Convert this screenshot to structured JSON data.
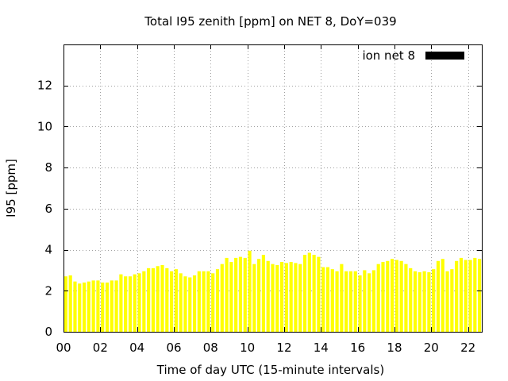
{
  "chart_data": {
    "type": "bar",
    "title": "Total I95 zenith [ppm] on NET 8, DoY=039",
    "xlabel": "Time of day UTC (15-minute intervals)",
    "ylabel": "I95 [ppm]",
    "xlim": [
      0,
      22.75
    ],
    "ylim": [
      0,
      14
    ],
    "x_ticks": [
      0,
      2,
      4,
      6,
      8,
      10,
      12,
      14,
      16,
      18,
      20,
      22
    ],
    "x_tick_labels": [
      "00",
      "02",
      "04",
      "06",
      "08",
      "10",
      "12",
      "14",
      "16",
      "18",
      "20",
      "22"
    ],
    "y_ticks": [
      0,
      2,
      4,
      6,
      8,
      10,
      12
    ],
    "y_tick_labels": [
      "0",
      "2",
      "4",
      "6",
      "8",
      "10",
      "12"
    ],
    "grid": true,
    "legend_position": "top-right",
    "bar_color": "#ffff00",
    "legend_swatch_color": "#000000",
    "series": [
      {
        "name": "ion net 8",
        "x": [
          0.0,
          0.25,
          0.5,
          0.75,
          1.0,
          1.25,
          1.5,
          1.75,
          2.0,
          2.25,
          2.5,
          2.75,
          3.0,
          3.25,
          3.5,
          3.75,
          4.0,
          4.25,
          4.5,
          4.75,
          5.0,
          5.25,
          5.5,
          5.75,
          6.0,
          6.25,
          6.5,
          6.75,
          7.0,
          7.25,
          7.5,
          7.75,
          8.0,
          8.25,
          8.5,
          8.75,
          9.0,
          9.25,
          9.5,
          9.75,
          10.0,
          10.25,
          10.5,
          10.75,
          11.0,
          11.25,
          11.5,
          11.75,
          12.0,
          12.25,
          12.5,
          12.75,
          13.0,
          13.25,
          13.5,
          13.75,
          14.0,
          14.25,
          14.5,
          14.75,
          15.0,
          15.25,
          15.5,
          15.75,
          16.0,
          16.25,
          16.5,
          16.75,
          17.0,
          17.25,
          17.5,
          17.75,
          18.0,
          18.25,
          18.5,
          18.75,
          19.0,
          19.25,
          19.5,
          19.75,
          20.0,
          20.25,
          20.5,
          20.75,
          21.0,
          21.25,
          21.5,
          21.75,
          22.0,
          22.25,
          22.5
        ],
        "values": [
          2.7,
          2.75,
          2.45,
          2.35,
          2.4,
          2.45,
          2.5,
          2.5,
          2.4,
          2.4,
          2.5,
          2.5,
          2.8,
          2.7,
          2.7,
          2.8,
          2.85,
          2.95,
          3.1,
          3.1,
          3.2,
          3.25,
          3.1,
          2.95,
          3.05,
          2.85,
          2.7,
          2.65,
          2.75,
          2.95,
          2.95,
          2.95,
          2.85,
          3.05,
          3.3,
          3.6,
          3.4,
          3.6,
          3.65,
          3.6,
          3.95,
          3.3,
          3.55,
          3.75,
          3.45,
          3.3,
          3.25,
          3.4,
          3.35,
          3.4,
          3.35,
          3.3,
          3.75,
          3.85,
          3.75,
          3.65,
          3.15,
          3.15,
          3.05,
          2.95,
          3.3,
          2.95,
          2.95,
          2.95,
          2.75,
          3.0,
          2.85,
          3.0,
          3.3,
          3.4,
          3.45,
          3.55,
          3.5,
          3.45,
          3.3,
          3.1,
          2.95,
          2.9,
          2.95,
          2.9,
          3.05,
          3.45,
          3.55,
          2.95,
          3.05,
          3.45,
          3.6,
          3.5,
          3.5,
          3.6,
          3.55
        ]
      }
    ]
  }
}
